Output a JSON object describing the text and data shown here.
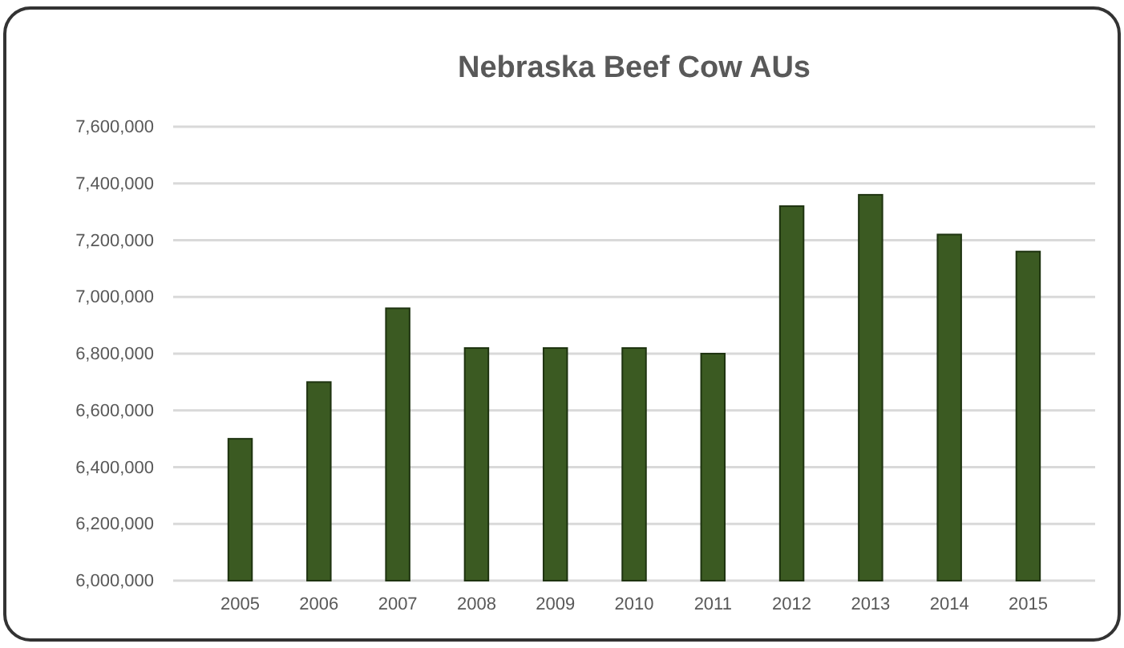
{
  "chart_data": {
    "type": "bar",
    "title": "Nebraska Beef Cow AUs",
    "categories": [
      "2005",
      "2006",
      "2007",
      "2008",
      "2009",
      "2010",
      "2011",
      "2012",
      "2013",
      "2014",
      "2015"
    ],
    "values": [
      6500000,
      6700000,
      6960000,
      6820000,
      6820000,
      6820000,
      6800000,
      7320000,
      7360000,
      7220000,
      7160000
    ],
    "color": "#3b5a22",
    "ylim": [
      6000000,
      7600000
    ],
    "yticks": [
      {
        "value": 6000000,
        "label": "6,000,000"
      },
      {
        "value": 6200000,
        "label": "6,200,000"
      },
      {
        "value": 6400000,
        "label": "6,400,000"
      },
      {
        "value": 6600000,
        "label": "6,600,000"
      },
      {
        "value": 6800000,
        "label": "6,800,000"
      },
      {
        "value": 7000000,
        "label": "7,000,000"
      },
      {
        "value": 7200000,
        "label": "7,200,000"
      },
      {
        "value": 7400000,
        "label": "7,400,000"
      },
      {
        "value": 7600000,
        "label": "7,600,000"
      }
    ],
    "grid": "y"
  }
}
